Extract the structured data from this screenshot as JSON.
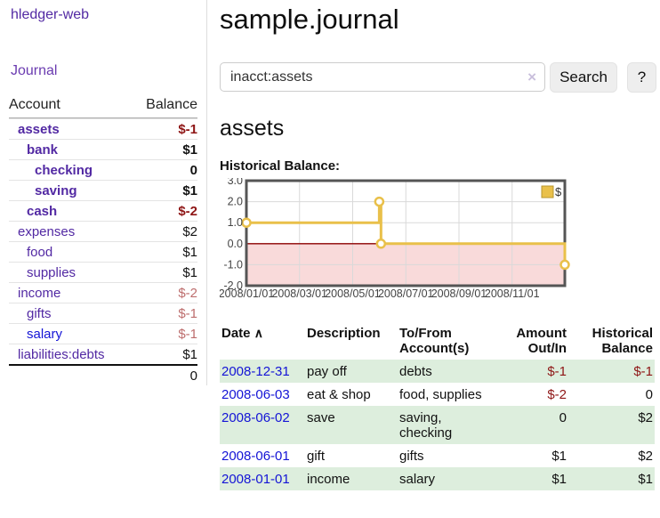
{
  "brand": "hledger-web",
  "nav": {
    "journal": "Journal"
  },
  "sidebar": {
    "header": {
      "account": "Account",
      "balance": "Balance"
    },
    "accounts": [
      {
        "name": "assets",
        "balance": "$-1"
      },
      {
        "name": "bank",
        "balance": "$1"
      },
      {
        "name": "checking",
        "balance": "0"
      },
      {
        "name": "saving",
        "balance": "$1"
      },
      {
        "name": "cash",
        "balance": "$-2"
      },
      {
        "name": "expenses",
        "balance": "$2"
      },
      {
        "name": "food",
        "balance": "$1"
      },
      {
        "name": "supplies",
        "balance": "$1"
      },
      {
        "name": "income",
        "balance": "$-2"
      },
      {
        "name": "gifts",
        "balance": "$-1"
      },
      {
        "name": "salary",
        "balance": "$-1"
      },
      {
        "name": "liabilities:debts",
        "balance": "$1"
      }
    ],
    "total": "0"
  },
  "header": {
    "title": "sample.journal"
  },
  "search": {
    "value": "inacct:assets",
    "clear_icon": "×",
    "button": "Search",
    "help": "?"
  },
  "account_page": {
    "heading": "assets",
    "chart_label": "Historical Balance:"
  },
  "chart_data": {
    "type": "line",
    "title": "Historical Balance:",
    "legend": "$",
    "legend_position": "top-right",
    "grid": true,
    "step": true,
    "ylim": [
      -2,
      3
    ],
    "y_ticks": [
      "3.0",
      "2.0",
      "1.0",
      "0.0",
      "-1.0",
      "-2.0"
    ],
    "y_tick_values": [
      3,
      2,
      1,
      0,
      -1,
      -2
    ],
    "x_ticks": [
      "2008/01/01",
      "2008/03/01",
      "2008/05/01",
      "2008/07/01",
      "2008/09/01",
      "2008/11/01"
    ],
    "x_tick_months": [
      0,
      2,
      4,
      6,
      8,
      10
    ],
    "series": [
      {
        "name": "$",
        "points": [
          {
            "date": "2008-01-01",
            "value": 1
          },
          {
            "date": "2008-06-01",
            "value": 2
          },
          {
            "date": "2008-06-03",
            "value": 0
          },
          {
            "date": "2008-12-31",
            "value": -1
          }
        ]
      }
    ],
    "colors": {
      "line": "#e9c04a",
      "marker_fill": "#ffffff",
      "negative_area": "#f9dada",
      "zero_line": "#8b0000",
      "grid": "#d9d9d9",
      "border": "#555555"
    }
  },
  "register": {
    "columns": {
      "date": "Date",
      "sort_arrow": "∧",
      "description": "Description",
      "tofrom": "To/From Account(s)",
      "amount": "Amount Out/In",
      "balance": "Historical Balance"
    },
    "rows": [
      {
        "date": "2008-12-31",
        "description": "pay off",
        "accounts": "debts",
        "amount": "$-1",
        "balance": "$-1"
      },
      {
        "date": "2008-06-03",
        "description": "eat & shop",
        "accounts": "food, supplies",
        "amount": "$-2",
        "balance": "0"
      },
      {
        "date": "2008-06-02",
        "description": "save",
        "accounts": "saving, checking",
        "amount": "0",
        "balance": "$2"
      },
      {
        "date": "2008-06-01",
        "description": "gift",
        "accounts": "gifts",
        "amount": "$1",
        "balance": "$2"
      },
      {
        "date": "2008-01-01",
        "description": "income",
        "accounts": "salary",
        "amount": "$1",
        "balance": "$1"
      }
    ]
  }
}
